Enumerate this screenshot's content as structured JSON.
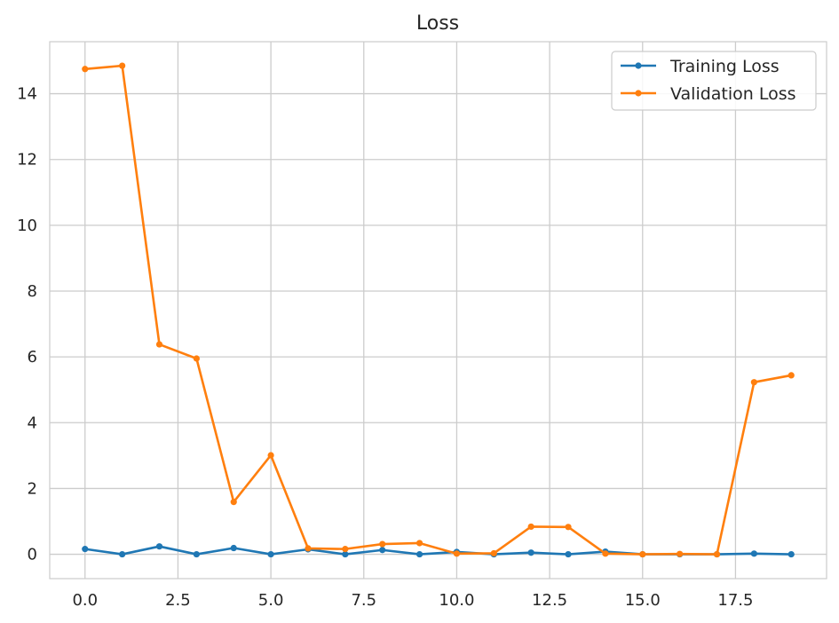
{
  "chart_data": {
    "type": "line",
    "title": "Loss",
    "xlabel": "",
    "ylabel": "",
    "x": [
      0,
      1,
      2,
      3,
      4,
      5,
      6,
      7,
      8,
      9,
      10,
      11,
      12,
      13,
      14,
      15,
      16,
      17,
      18,
      19
    ],
    "xlim": [
      -0.95,
      19.95
    ],
    "ylim": [
      -0.74,
      15.58
    ],
    "x_ticks": [
      0.0,
      2.5,
      5.0,
      7.5,
      10.0,
      12.5,
      15.0,
      17.5
    ],
    "x_tick_labels": [
      "0.0",
      "2.5",
      "5.0",
      "7.5",
      "10.0",
      "12.5",
      "15.0",
      "17.5"
    ],
    "y_ticks": [
      0,
      2,
      4,
      6,
      8,
      10,
      12,
      14
    ],
    "y_tick_labels": [
      "0",
      "2",
      "4",
      "6",
      "8",
      "10",
      "12",
      "14"
    ],
    "grid": true,
    "legend_position": "top-right",
    "series": [
      {
        "name": "Training Loss",
        "color": "#1f77b4",
        "values": [
          0.16,
          0.0,
          0.24,
          0.0,
          0.19,
          0.0,
          0.15,
          0.0,
          0.13,
          0.0,
          0.07,
          0.0,
          0.05,
          0.0,
          0.08,
          0.0,
          0.0,
          0.0,
          0.02,
          0.0
        ]
      },
      {
        "name": "Validation Loss",
        "color": "#ff7f0e",
        "values": [
          14.75,
          14.85,
          6.38,
          5.95,
          1.59,
          3.01,
          0.18,
          0.16,
          0.31,
          0.34,
          0.02,
          0.03,
          0.84,
          0.83,
          0.02,
          0.0,
          0.01,
          0.0,
          5.23,
          5.44
        ]
      }
    ]
  }
}
